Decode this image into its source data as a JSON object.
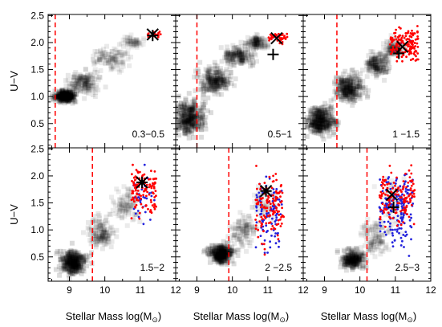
{
  "chart_data": {
    "type": "scatter",
    "xlabel": "Stellar Mass log(M",
    "xlabel_sub": "⊙",
    "xlabel_close": ")",
    "ylabel": "U−V",
    "xlim": [
      8.4,
      12.0
    ],
    "ylim": [
      0.05,
      2.52
    ],
    "x_ticks": [
      9,
      10,
      11,
      12
    ],
    "y_ticks": [
      0.5,
      1.0,
      1.5,
      2.0,
      2.5
    ],
    "colors": {
      "density": "#000000",
      "red_points": "#ff0000",
      "blue_points": "#2222dd",
      "cut_line": "#ff0000",
      "markers": "#000000"
    },
    "panels": [
      {
        "label": "0.3−0.5",
        "mass_limit": 8.6,
        "cross_x": [
          11.35,
          2.15
        ],
        "plus_x": [
          11.35,
          2.13
        ],
        "red": {
          "x": [
            11.15,
            11.65
          ],
          "y": [
            2.05,
            2.22
          ],
          "n": 14
        },
        "blue": {
          "x": [
            11.2,
            11.5
          ],
          "y": [
            2.1,
            2.2
          ],
          "n": 0
        },
        "density": [
          {
            "x": 8.9,
            "y": 1.0,
            "sx": 0.35,
            "sy": 0.12,
            "w": 1.0
          },
          {
            "x": 9.4,
            "y": 1.25,
            "sx": 0.5,
            "sy": 0.22,
            "w": 0.5
          },
          {
            "x": 10.2,
            "y": 1.7,
            "sx": 0.6,
            "sy": 0.25,
            "w": 0.35
          },
          {
            "x": 10.8,
            "y": 2.0,
            "sx": 0.4,
            "sy": 0.12,
            "w": 0.2
          }
        ]
      },
      {
        "label": "0.5−1",
        "mass_limit": 9.0,
        "cross_x": [
          11.25,
          2.08
        ],
        "plus_x": [
          11.15,
          1.78
        ],
        "red": {
          "x": [
            10.95,
            11.55
          ],
          "y": [
            1.95,
            2.25
          ],
          "n": 40
        },
        "blue": {
          "x": [
            11.0,
            11.5
          ],
          "y": [
            2.0,
            2.2
          ],
          "n": 3
        },
        "density": [
          {
            "x": 8.8,
            "y": 0.6,
            "sx": 0.5,
            "sy": 0.35,
            "w": 1.0
          },
          {
            "x": 9.5,
            "y": 1.3,
            "sx": 0.5,
            "sy": 0.28,
            "w": 0.75
          },
          {
            "x": 10.2,
            "y": 1.75,
            "sx": 0.5,
            "sy": 0.22,
            "w": 0.55
          },
          {
            "x": 10.7,
            "y": 2.0,
            "sx": 0.35,
            "sy": 0.12,
            "w": 0.4
          }
        ]
      },
      {
        "label": "1   −1.5",
        "mass_limit": 9.35,
        "cross_x": [
          11.2,
          1.92
        ],
        "plus_x": [
          11.1,
          1.8
        ],
        "red": {
          "x": [
            10.85,
            11.65
          ],
          "y": [
            1.5,
            2.4
          ],
          "n": 150
        },
        "blue": {
          "x": [
            10.9,
            11.5
          ],
          "y": [
            1.6,
            2.2
          ],
          "n": 4
        },
        "density": [
          {
            "x": 8.9,
            "y": 0.55,
            "sx": 0.45,
            "sy": 0.3,
            "w": 1.0
          },
          {
            "x": 9.7,
            "y": 1.15,
            "sx": 0.45,
            "sy": 0.3,
            "w": 0.85
          },
          {
            "x": 10.5,
            "y": 1.6,
            "sx": 0.4,
            "sy": 0.25,
            "w": 0.55
          },
          {
            "x": 10.95,
            "y": 1.9,
            "sx": 0.3,
            "sy": 0.18,
            "w": 0.35
          }
        ]
      },
      {
        "label": "1.5−2",
        "mass_limit": 9.65,
        "cross_x": [
          11.05,
          1.88
        ],
        "plus_x": [
          11.05,
          1.88
        ],
        "red": {
          "x": [
            10.75,
            11.45
          ],
          "y": [
            1.1,
            2.4
          ],
          "n": 120
        },
        "blue": {
          "x": [
            10.75,
            11.4
          ],
          "y": [
            0.85,
            2.3
          ],
          "n": 35
        },
        "density": [
          {
            "x": 9.1,
            "y": 0.4,
            "sx": 0.45,
            "sy": 0.25,
            "w": 1.0
          },
          {
            "x": 9.9,
            "y": 0.95,
            "sx": 0.45,
            "sy": 0.3,
            "w": 0.45
          },
          {
            "x": 10.6,
            "y": 1.45,
            "sx": 0.45,
            "sy": 0.35,
            "w": 0.3
          }
        ]
      },
      {
        "label": "2   −2.5",
        "mass_limit": 9.9,
        "cross_x": [
          10.95,
          1.72
        ],
        "plus_x": [
          10.95,
          1.72
        ],
        "red": {
          "x": [
            10.65,
            11.45
          ],
          "y": [
            0.5,
            2.3
          ],
          "n": 130
        },
        "blue": {
          "x": [
            10.65,
            11.4
          ],
          "y": [
            0.35,
            2.2
          ],
          "n": 90
        },
        "density": [
          {
            "x": 9.7,
            "y": 0.55,
            "sx": 0.35,
            "sy": 0.18,
            "w": 1.0
          },
          {
            "x": 10.3,
            "y": 0.95,
            "sx": 0.45,
            "sy": 0.35,
            "w": 0.35
          },
          {
            "x": 10.9,
            "y": 1.5,
            "sx": 0.4,
            "sy": 0.4,
            "w": 0.2
          }
        ]
      },
      {
        "label": "2.5−3",
        "mass_limit": 10.2,
        "cross_x": [
          10.9,
          1.65
        ],
        "plus_x": [
          10.95,
          1.42
        ],
        "red": {
          "x": [
            10.55,
            11.55
          ],
          "y": [
            0.8,
            2.4
          ],
          "n": 140
        },
        "blue": {
          "x": [
            10.55,
            11.5
          ],
          "y": [
            0.3,
            2.45
          ],
          "n": 170
        },
        "density": [
          {
            "x": 9.8,
            "y": 0.45,
            "sx": 0.35,
            "sy": 0.2,
            "w": 0.8
          },
          {
            "x": 10.4,
            "y": 0.85,
            "sx": 0.45,
            "sy": 0.35,
            "w": 0.35
          },
          {
            "x": 10.9,
            "y": 1.5,
            "sx": 0.4,
            "sy": 0.45,
            "w": 0.2
          }
        ]
      }
    ]
  }
}
